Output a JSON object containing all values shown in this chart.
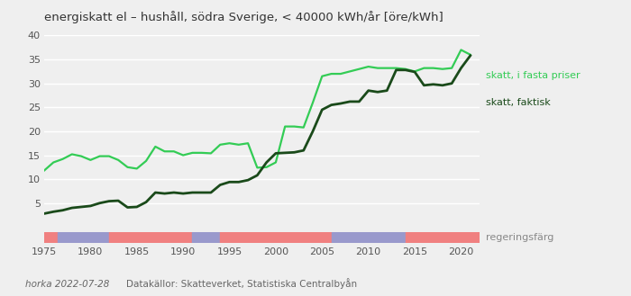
{
  "title": "energiskatt el – hushåll, södra Sverige, < 40000 kWh/år [öre/kWh]",
  "xlim": [
    1975,
    2022
  ],
  "ylim": [
    0,
    40
  ],
  "yticks": [
    5,
    10,
    15,
    20,
    25,
    30,
    35,
    40
  ],
  "xticks": [
    1975,
    1980,
    1985,
    1990,
    1995,
    2000,
    2005,
    2010,
    2015,
    2020
  ],
  "bg_color": "#efefef",
  "grid_color": "#ffffff",
  "faktisk_color": "#1a4a1a",
  "fasta_color": "#33cc55",
  "legend_label_fasta": "skatt, i fasta priser",
  "legend_label_faktisk": "skatt, faktisk",
  "legend_label_reg": "regeringsfärg",
  "footer_left": "horka 2022-07-28",
  "footer_right": "Datakällor: Skatteverket, Statistiska Centralbyån",
  "faktisk_years": [
    1975,
    1976,
    1977,
    1978,
    1979,
    1980,
    1981,
    1982,
    1983,
    1984,
    1985,
    1986,
    1987,
    1988,
    1989,
    1990,
    1991,
    1992,
    1993,
    1994,
    1995,
    1996,
    1997,
    1998,
    1999,
    2000,
    2001,
    2002,
    2003,
    2004,
    2005,
    2006,
    2007,
    2008,
    2009,
    2010,
    2011,
    2012,
    2013,
    2014,
    2015,
    2016,
    2017,
    2018,
    2019,
    2020,
    2021
  ],
  "faktisk_values": [
    2.8,
    3.2,
    3.5,
    4.0,
    4.2,
    4.4,
    5.0,
    5.4,
    5.5,
    4.1,
    4.2,
    5.2,
    7.2,
    7.0,
    7.2,
    7.0,
    7.2,
    7.2,
    7.2,
    8.8,
    9.4,
    9.4,
    9.8,
    10.8,
    13.5,
    15.4,
    15.5,
    15.6,
    16.0,
    20.0,
    24.5,
    25.5,
    25.8,
    26.2,
    26.2,
    28.5,
    28.2,
    28.5,
    32.8,
    32.8,
    32.4,
    29.6,
    29.8,
    29.6,
    30.0,
    33.2,
    35.8
  ],
  "fasta_years": [
    1975,
    1976,
    1977,
    1978,
    1979,
    1980,
    1981,
    1982,
    1983,
    1984,
    1985,
    1986,
    1987,
    1988,
    1989,
    1990,
    1991,
    1992,
    1993,
    1994,
    1995,
    1996,
    1997,
    1998,
    1999,
    2000,
    2001,
    2002,
    2003,
    2004,
    2005,
    2006,
    2007,
    2008,
    2009,
    2010,
    2011,
    2012,
    2013,
    2014,
    2015,
    2016,
    2017,
    2018,
    2019,
    2020,
    2021
  ],
  "fasta_values": [
    11.8,
    13.5,
    14.2,
    15.2,
    14.8,
    14.0,
    14.8,
    14.8,
    14.0,
    12.5,
    12.2,
    13.8,
    16.8,
    15.8,
    15.8,
    15.0,
    15.5,
    15.5,
    15.4,
    17.2,
    17.5,
    17.2,
    17.5,
    12.4,
    12.5,
    13.5,
    21.0,
    21.0,
    20.8,
    26.0,
    31.5,
    32.0,
    32.0,
    32.5,
    33.0,
    33.5,
    33.2,
    33.2,
    33.2,
    33.0,
    32.5,
    33.2,
    33.2,
    33.0,
    33.2,
    37.0,
    36.0
  ],
  "gov_segments": [
    {
      "start": 1975,
      "end": 1976.5,
      "color": "#f08080"
    },
    {
      "start": 1976.5,
      "end": 1982,
      "color": "#9999cc"
    },
    {
      "start": 1982,
      "end": 1991,
      "color": "#f08080"
    },
    {
      "start": 1991,
      "end": 1994,
      "color": "#9999cc"
    },
    {
      "start": 1994,
      "end": 2006,
      "color": "#f08080"
    },
    {
      "start": 2006,
      "end": 2014,
      "color": "#9999cc"
    },
    {
      "start": 2014,
      "end": 2022,
      "color": "#f08080"
    }
  ]
}
